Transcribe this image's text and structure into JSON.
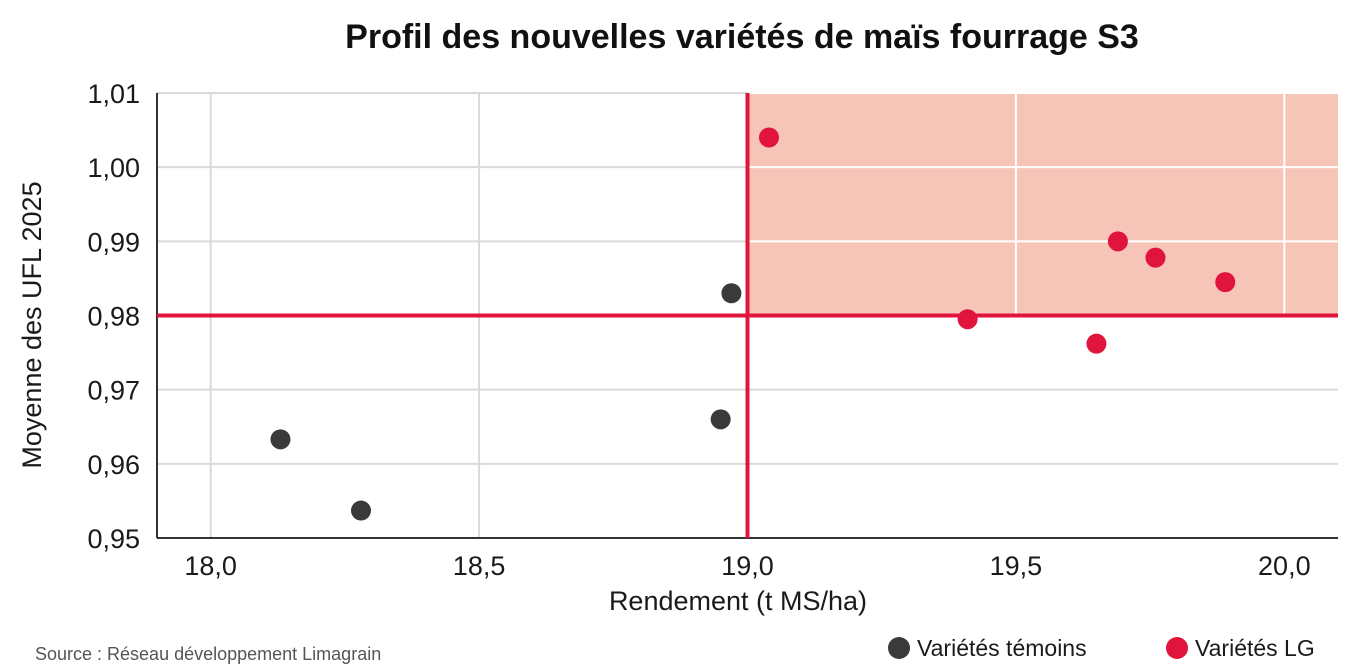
{
  "chart_data": {
    "type": "scatter",
    "title": "Profil des nouvelles variétés de maïs fourrage S3",
    "xlabel": "Rendement (t MS/ha)",
    "ylabel": "Moyenne des UFL 2025",
    "xlim": [
      17.9,
      20.1
    ],
    "ylim": [
      0.95,
      1.01
    ],
    "x_ticks": [
      "18,0",
      "18,5",
      "19,0",
      "19,5",
      "20,0"
    ],
    "x_tick_values": [
      18.0,
      18.5,
      19.0,
      19.5,
      20.0
    ],
    "y_ticks": [
      "0,95",
      "0,96",
      "0,97",
      "0,98",
      "0,99",
      "1,00",
      "1,01"
    ],
    "y_tick_values": [
      0.95,
      0.96,
      0.97,
      0.98,
      0.99,
      1.0,
      1.01
    ],
    "grid": true,
    "reference_lines": {
      "x": 19.0,
      "y": 0.98,
      "color": "#e0143c"
    },
    "highlight_quadrant": {
      "x_from": 19.0,
      "y_from": 0.98,
      "color": "#f7c4b8"
    },
    "series": [
      {
        "name": "Variétés témoins",
        "color": "#3a3a3a",
        "points": [
          {
            "x": 18.13,
            "y": 0.9633
          },
          {
            "x": 18.28,
            "y": 0.9537
          },
          {
            "x": 18.95,
            "y": 0.966
          },
          {
            "x": 18.97,
            "y": 0.983
          }
        ]
      },
      {
        "name": "Variétés LG",
        "color": "#e0143c",
        "points": [
          {
            "x": 19.04,
            "y": 1.004
          },
          {
            "x": 19.41,
            "y": 0.9795
          },
          {
            "x": 19.65,
            "y": 0.9762
          },
          {
            "x": 19.69,
            "y": 0.99
          },
          {
            "x": 19.76,
            "y": 0.9878
          },
          {
            "x": 19.89,
            "y": 0.9845
          }
        ]
      }
    ],
    "legend": {
      "placement": "bottom-right"
    },
    "source": "Source : Réseau développement Limagrain"
  }
}
